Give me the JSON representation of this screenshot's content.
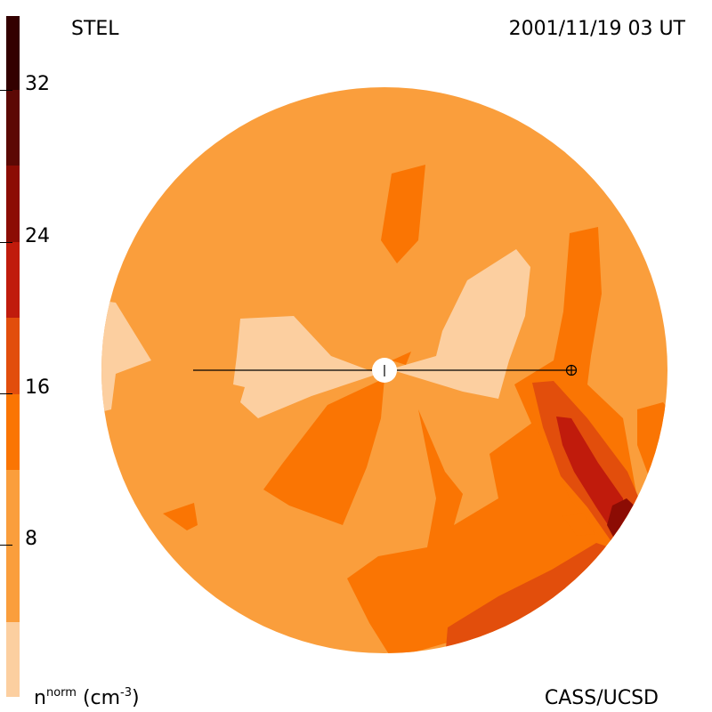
{
  "header": {
    "source_label": "STEL",
    "timestamp": "2001/11/19 03 UT"
  },
  "footer": {
    "credit": "CASS/UCSD",
    "quantity": "n",
    "quantity_superscript": "norm",
    "unit_prefix": "(cm",
    "unit_superscript": "-3",
    "unit_suffix": ")"
  },
  "colorbar": {
    "ticks": [
      "32",
      "24",
      "16",
      "8"
    ],
    "colors": [
      "#fccfa0",
      "#fa9e3c",
      "#fa7503",
      "#e24e0c",
      "#c01b0c",
      "#8c0c04",
      "#5c0804",
      "#330000"
    ]
  },
  "markers": {
    "sun_symbol": "sun-disk",
    "earth_symbol": "earth-symbol"
  }
}
